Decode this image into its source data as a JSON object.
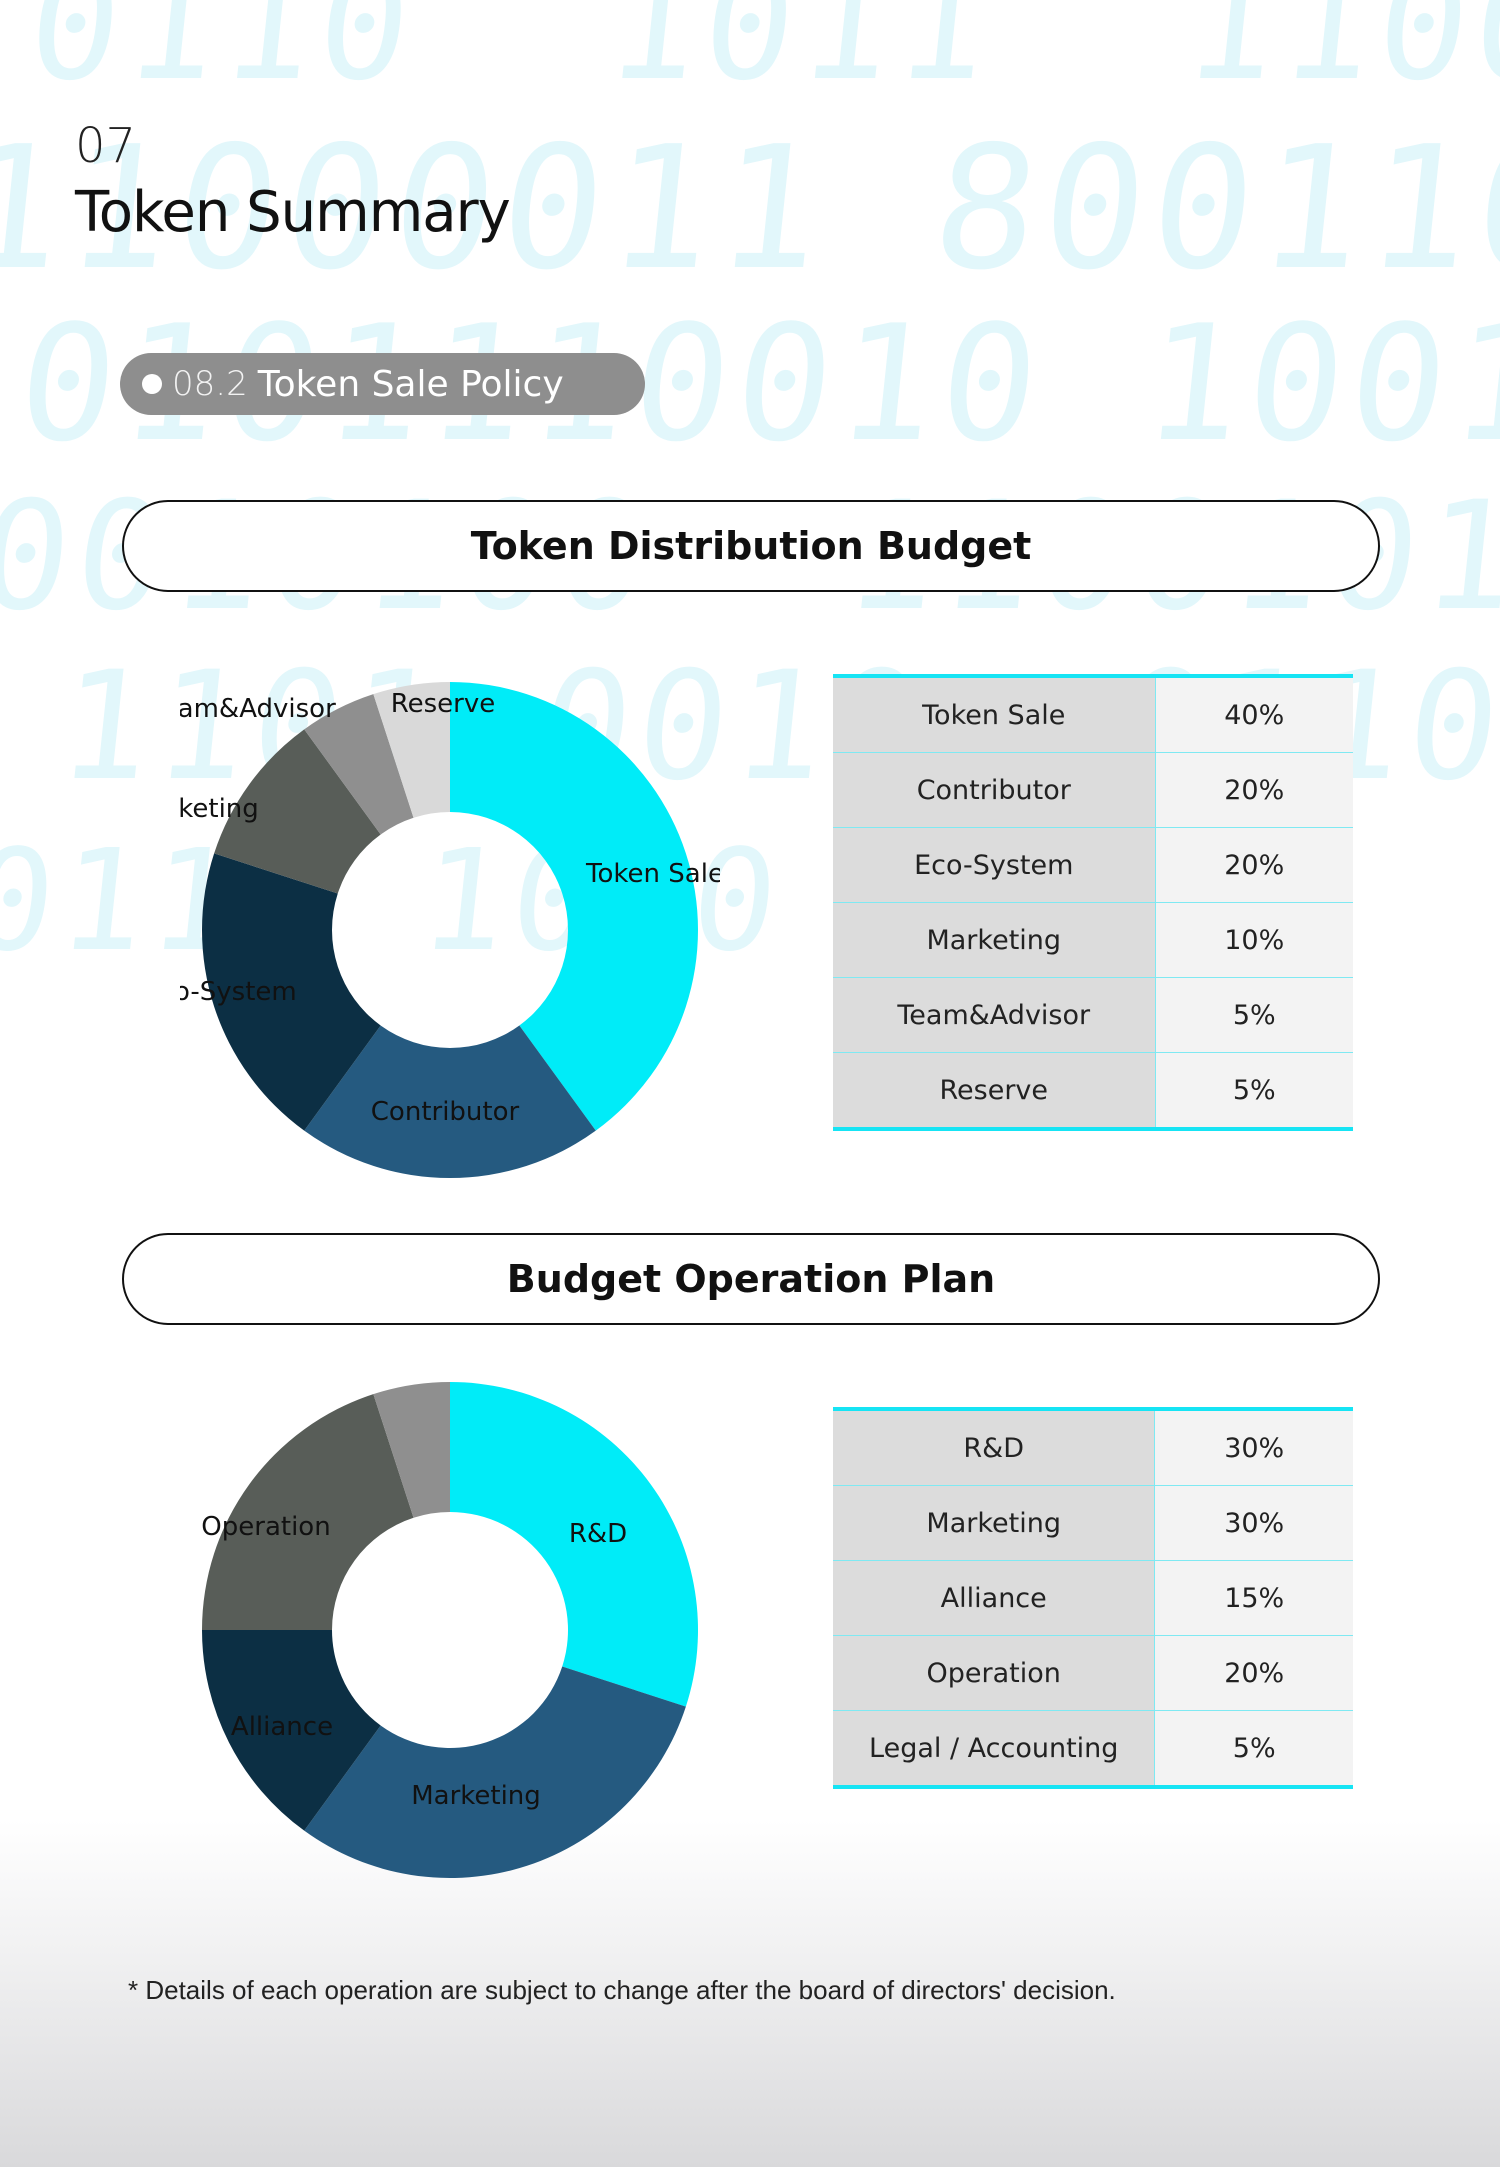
{
  "header": {
    "section_number": "07",
    "title": "Token Summary"
  },
  "subsection": {
    "number": "08.2",
    "label": "Token Sale Policy"
  },
  "charts": {
    "distribution": {
      "title": "Token Distribution Budget"
    },
    "operation": {
      "title": "Budget Operation Plan"
    }
  },
  "chart_data": [
    {
      "type": "pie",
      "title": "Token Distribution Budget",
      "donut": true,
      "categories": [
        "Token Sale",
        "Contributor",
        "Eco-System",
        "Marketing",
        "Team&Advisor",
        "Reserve"
      ],
      "values": [
        40,
        20,
        20,
        10,
        5,
        5
      ],
      "colors": [
        "#00ecf8",
        "#255a80",
        "#0c2f44",
        "#585d58",
        "#8f8f8f",
        "#d9d9d9"
      ],
      "legend": "none"
    },
    {
      "type": "pie",
      "title": "Budget Operation Plan",
      "donut": true,
      "categories": [
        "R&D",
        "Marketing",
        "Alliance",
        "Operation",
        "Legal / Accounting"
      ],
      "values": [
        30,
        30,
        15,
        20,
        5
      ],
      "colors": [
        "#00ecf8",
        "#255a80",
        "#0c2f44",
        "#585d58",
        "#8f8f8f"
      ],
      "legend": "none"
    }
  ],
  "tables": {
    "distribution": [
      {
        "category": "Token Sale",
        "value": "40%"
      },
      {
        "category": "Contributor",
        "value": "20%"
      },
      {
        "category": "Eco-System",
        "value": "20%"
      },
      {
        "category": "Marketing",
        "value": "10%"
      },
      {
        "category": "Team&Advisor",
        "value": "5%"
      },
      {
        "category": "Reserve",
        "value": "5%"
      }
    ],
    "operation": [
      {
        "category": "R&D",
        "value": "30%"
      },
      {
        "category": "Marketing",
        "value": "30%"
      },
      {
        "category": "Alliance",
        "value": "15%"
      },
      {
        "category": "Operation",
        "value": "20%"
      },
      {
        "category": "Legal / Accounting",
        "value": "5%"
      }
    ]
  },
  "footnote": "* Details of each operation are subject to change after the board of directors' decision."
}
